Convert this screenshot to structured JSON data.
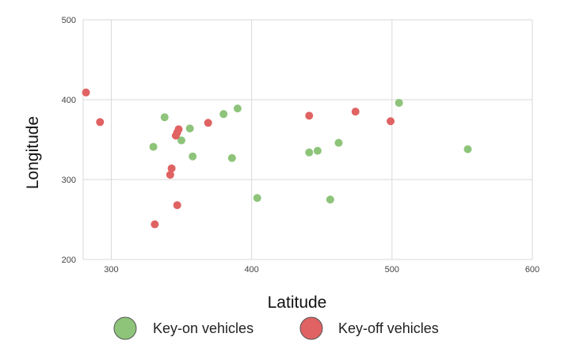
{
  "chart_data": {
    "type": "scatter",
    "title": "",
    "xlabel": "Latitude",
    "ylabel": "Longitude",
    "xlim": [
      280,
      600
    ],
    "ylim": [
      200,
      500
    ],
    "xticks": [
      300,
      400,
      500,
      600
    ],
    "yticks": [
      200,
      300,
      400,
      500
    ],
    "grid": true,
    "legend_position": "bottom",
    "series": [
      {
        "name": "Key-on vehicles",
        "color": "#8dc47a",
        "points": [
          {
            "x": 338,
            "y": 378
          },
          {
            "x": 330,
            "y": 341
          },
          {
            "x": 350,
            "y": 349
          },
          {
            "x": 356,
            "y": 364
          },
          {
            "x": 358,
            "y": 329
          },
          {
            "x": 380,
            "y": 382
          },
          {
            "x": 390,
            "y": 389
          },
          {
            "x": 386,
            "y": 327
          },
          {
            "x": 404,
            "y": 277
          },
          {
            "x": 441,
            "y": 334
          },
          {
            "x": 447,
            "y": 336
          },
          {
            "x": 456,
            "y": 275
          },
          {
            "x": 462,
            "y": 346
          },
          {
            "x": 505,
            "y": 396
          },
          {
            "x": 554,
            "y": 338
          }
        ]
      },
      {
        "name": "Key-off vehicles",
        "color": "#e06262",
        "points": [
          {
            "x": 282,
            "y": 409
          },
          {
            "x": 292,
            "y": 372
          },
          {
            "x": 331,
            "y": 244
          },
          {
            "x": 342,
            "y": 306
          },
          {
            "x": 343,
            "y": 314
          },
          {
            "x": 346,
            "y": 355
          },
          {
            "x": 347,
            "y": 359
          },
          {
            "x": 348,
            "y": 363
          },
          {
            "x": 347,
            "y": 268
          },
          {
            "x": 369,
            "y": 371
          },
          {
            "x": 441,
            "y": 380
          },
          {
            "x": 474,
            "y": 385
          },
          {
            "x": 499,
            "y": 373
          }
        ]
      }
    ]
  }
}
